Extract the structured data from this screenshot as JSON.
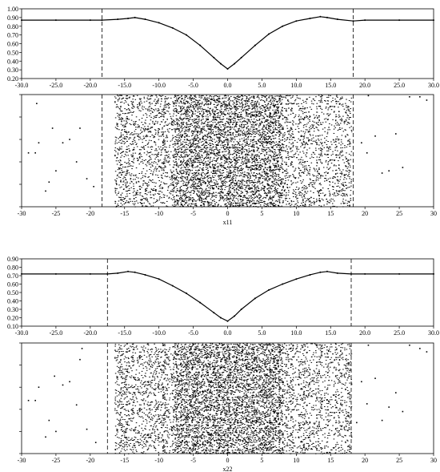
{
  "chart_data": [
    {
      "type": "line",
      "panel": "x11-line",
      "xlim": [
        -30,
        30
      ],
      "ylim": [
        0.2,
        1.0
      ],
      "xticks": [
        -30.0,
        -25.0,
        -20.0,
        -15.0,
        -10.0,
        -5.0,
        0.0,
        5.0,
        10.0,
        15.0,
        20.0,
        25.0,
        30.0
      ],
      "xtick_labels": [
        "-30.0",
        "-25.0",
        "-20.0",
        "-15.0",
        "-10.0",
        "-5.0",
        "0.0",
        "5.0",
        "10.0",
        "15.0",
        "20.0",
        "25.0",
        "30.0"
      ],
      "yticks": [
        0.2,
        0.3,
        0.4,
        0.5,
        0.6,
        0.7,
        0.8,
        0.9,
        1.0
      ],
      "ytick_labels": [
        "0.20",
        "0.30",
        "0.40",
        "0.50",
        "0.60",
        "0.70",
        "0.80",
        "0.90",
        "1.00"
      ],
      "vlines": [
        -18.3,
        18.3
      ],
      "x": [
        -30,
        -25,
        -20,
        -18.3,
        -16,
        -14.5,
        -13.5,
        -12,
        -10,
        -8,
        -6,
        -4,
        -2,
        -1,
        0,
        1,
        2,
        4,
        6,
        8,
        10,
        12,
        13.5,
        14.5,
        16,
        18.3,
        20,
        25,
        30
      ],
      "y": [
        0.87,
        0.87,
        0.87,
        0.87,
        0.88,
        0.89,
        0.9,
        0.88,
        0.84,
        0.78,
        0.7,
        0.58,
        0.44,
        0.37,
        0.31,
        0.37,
        0.44,
        0.58,
        0.71,
        0.8,
        0.86,
        0.89,
        0.91,
        0.9,
        0.88,
        0.86,
        0.87,
        0.87,
        0.87
      ]
    },
    {
      "type": "scatter",
      "panel": "x11-scatter",
      "xlabel": "x11",
      "xlim": [
        -30,
        30
      ],
      "xticks": [
        -30,
        -25,
        -20,
        -15,
        -10,
        -5,
        0,
        5,
        10,
        15,
        20,
        25,
        30
      ],
      "xtick_labels": [
        "-30",
        "-25",
        "-20",
        "-15",
        "-10",
        "-5",
        "0",
        "5",
        "10",
        "15",
        "20",
        "25",
        "30"
      ],
      "vlines": [
        -18.3,
        18.3
      ],
      "sparse_points": [
        [
          -29,
          0.48
        ],
        [
          -28,
          0.48
        ],
        [
          -27.5,
          0.57
        ],
        [
          -26,
          0.22
        ],
        [
          -25.5,
          0.7
        ],
        [
          -25,
          0.32
        ],
        [
          -24,
          0.57
        ],
        [
          -23,
          0.6
        ],
        [
          -22,
          0.4
        ],
        [
          -21.5,
          0.7
        ],
        [
          -20.5,
          0.25
        ],
        [
          -19.5,
          0.18
        ],
        [
          -26.5,
          0.14
        ],
        [
          -27.8,
          0.92
        ],
        [
          19.5,
          0.57
        ],
        [
          20.5,
          0.99
        ],
        [
          21.5,
          0.63
        ],
        [
          22.5,
          0.3
        ],
        [
          23.5,
          0.32
        ],
        [
          24.5,
          0.65
        ],
        [
          25.5,
          0.35
        ],
        [
          26.5,
          0.98
        ],
        [
          28,
          0.98
        ],
        [
          29,
          0.95
        ],
        [
          20.3,
          0.48
        ]
      ],
      "dense_range": [
        -16.5,
        18
      ]
    },
    {
      "type": "line",
      "panel": "x22-line",
      "xlim": [
        -30,
        30
      ],
      "ylim": [
        0.1,
        0.9
      ],
      "xticks": [
        -30.0,
        -25.0,
        -20.0,
        -15.0,
        -10.0,
        -5.0,
        0.0,
        5.0,
        10.0,
        15.0,
        20.0,
        25.0,
        30.0
      ],
      "xtick_labels": [
        "-30.0",
        "-25.0",
        "-20.0",
        "-15.0",
        "-10.0",
        "-5.0",
        "0.0",
        "5.0",
        "10.0",
        "15.0",
        "20.0",
        "25.0",
        "30.0"
      ],
      "yticks": [
        0.1,
        0.2,
        0.3,
        0.4,
        0.5,
        0.6,
        0.7,
        0.8,
        0.9
      ],
      "ytick_labels": [
        "0.10",
        "0.20",
        "0.30",
        "0.40",
        "0.50",
        "0.60",
        "0.70",
        "0.80",
        "0.90"
      ],
      "vlines": [
        -17.5,
        18.0
      ],
      "x": [
        -30,
        -25,
        -20,
        -17.5,
        -16,
        -14.5,
        -13.5,
        -12,
        -10,
        -8,
        -6,
        -4,
        -2,
        -1,
        0,
        1,
        2,
        4,
        6,
        8,
        10,
        12,
        13.5,
        14.5,
        16,
        18,
        20,
        25,
        30
      ],
      "y": [
        0.72,
        0.72,
        0.72,
        0.72,
        0.73,
        0.75,
        0.74,
        0.71,
        0.66,
        0.58,
        0.49,
        0.38,
        0.26,
        0.2,
        0.16,
        0.22,
        0.3,
        0.43,
        0.53,
        0.6,
        0.66,
        0.71,
        0.74,
        0.75,
        0.73,
        0.72,
        0.72,
        0.72,
        0.72
      ]
    },
    {
      "type": "scatter",
      "panel": "x22-scatter",
      "xlabel": "x22",
      "xlim": [
        -30,
        30
      ],
      "xticks": [
        -30,
        -25,
        -20,
        -15,
        -10,
        -5,
        0,
        5,
        10,
        15,
        20,
        25,
        30
      ],
      "xtick_labels": [
        "-30",
        "-25",
        "-20",
        "-15",
        "-10",
        "-5",
        "0",
        "5",
        "10",
        "15",
        "20",
        "25",
        "30"
      ],
      "vlines": [
        -17.5,
        18.0
      ],
      "sparse_points": [
        [
          -29,
          0.48
        ],
        [
          -28,
          0.48
        ],
        [
          -27.5,
          0.6
        ],
        [
          -26,
          0.3
        ],
        [
          -25.2,
          0.7
        ],
        [
          -25,
          0.2
        ],
        [
          -24,
          0.62
        ],
        [
          -23,
          0.65
        ],
        [
          -22,
          0.44
        ],
        [
          -21.5,
          0.85
        ],
        [
          -20.5,
          0.22
        ],
        [
          -19.2,
          0.1
        ],
        [
          -26.5,
          0.15
        ],
        [
          -21.2,
          0.95
        ],
        [
          19.5,
          0.65
        ],
        [
          20.5,
          0.98
        ],
        [
          21.5,
          0.68
        ],
        [
          22.5,
          0.3
        ],
        [
          23.5,
          0.42
        ],
        [
          24.5,
          0.55
        ],
        [
          25.5,
          0.38
        ],
        [
          26.5,
          0.98
        ],
        [
          28,
          0.95
        ],
        [
          29,
          0.92
        ],
        [
          20.3,
          0.45
        ],
        [
          18.8,
          0.28
        ]
      ],
      "dense_range": [
        -16.5,
        18
      ]
    }
  ]
}
